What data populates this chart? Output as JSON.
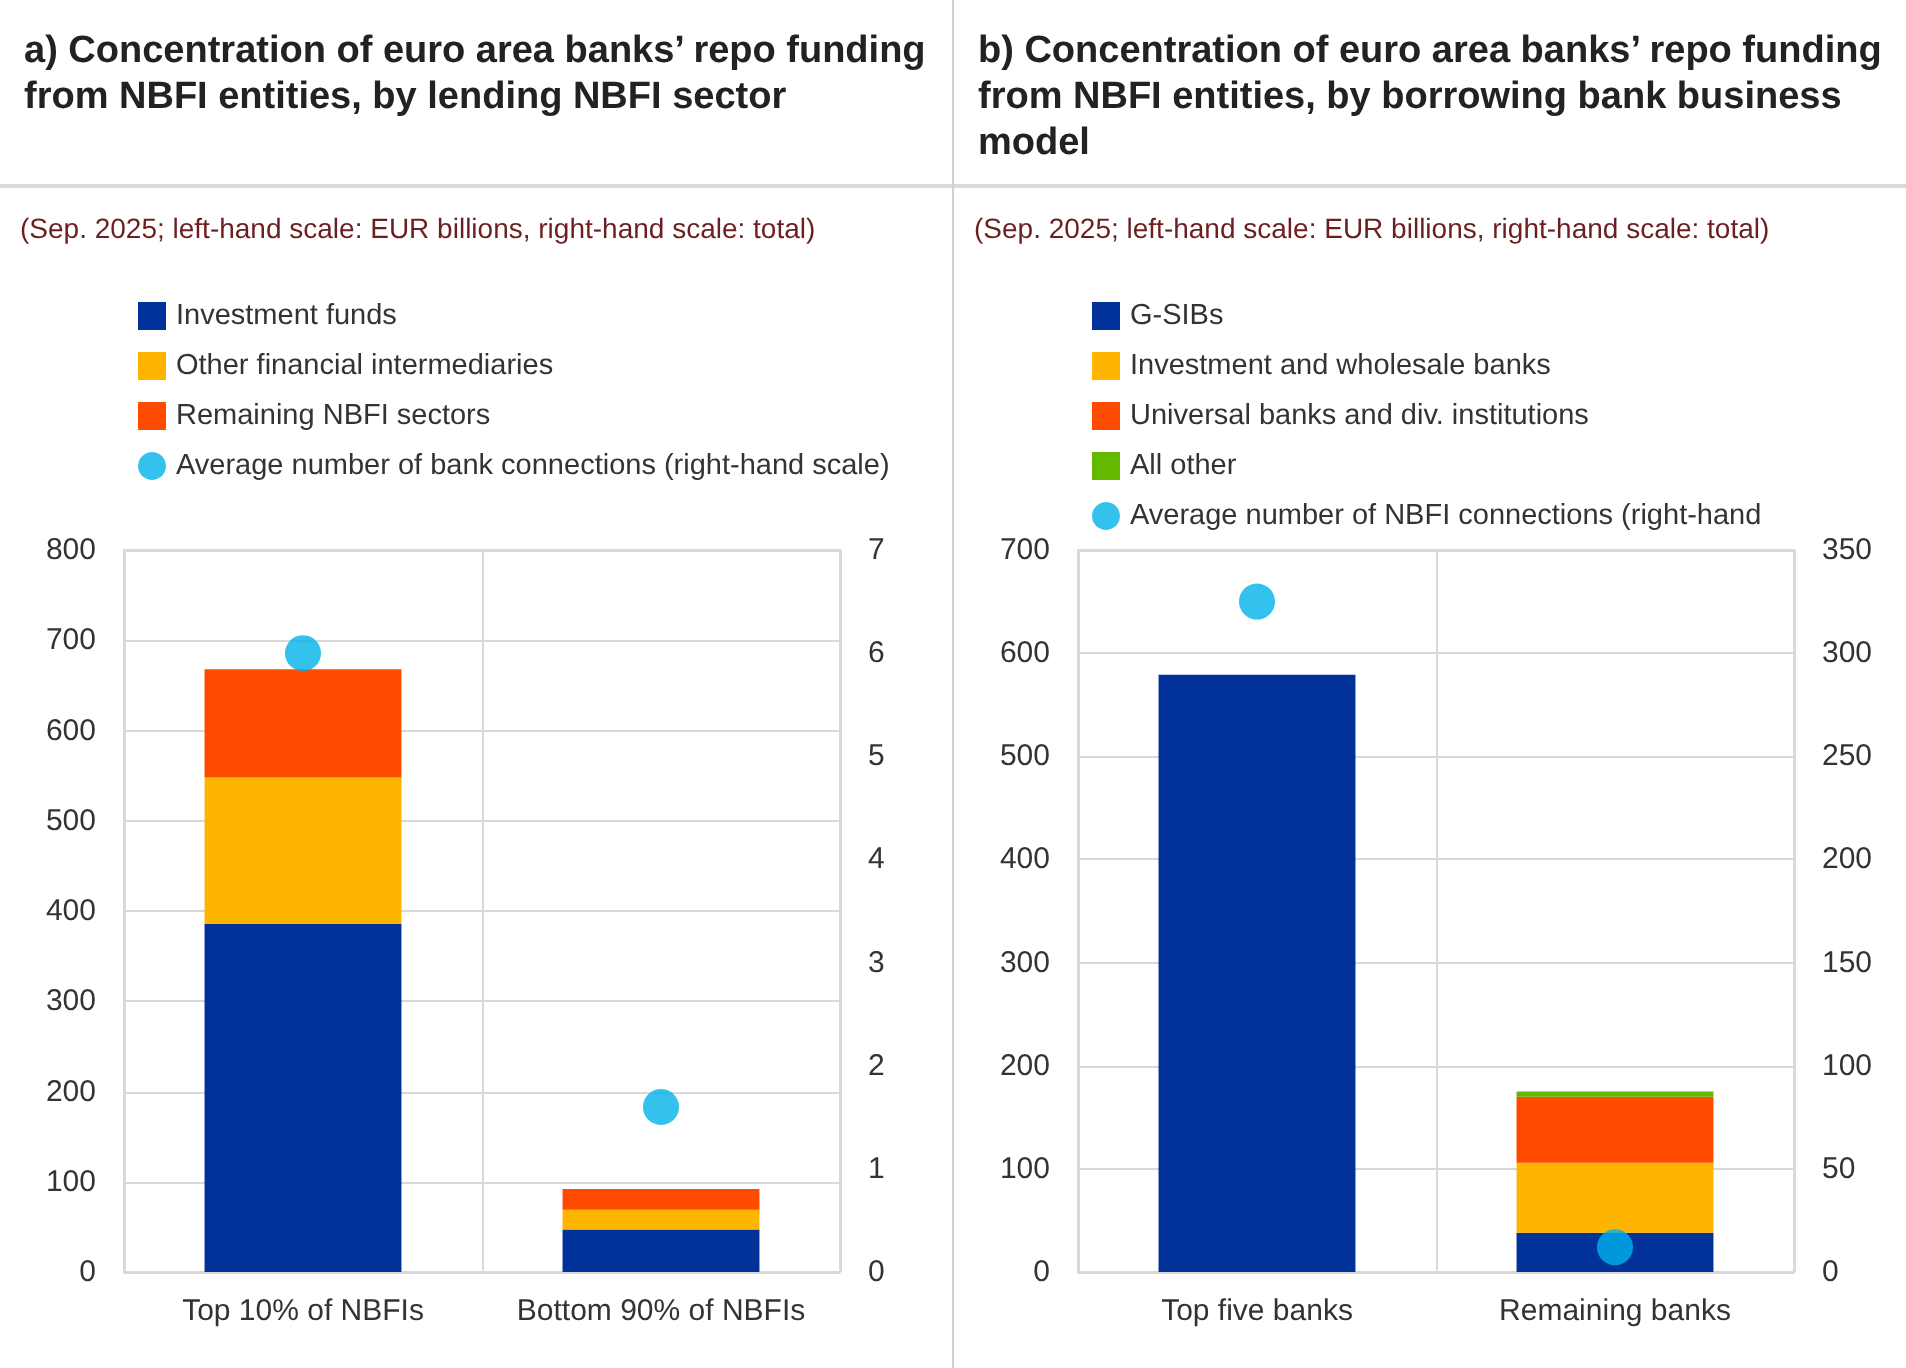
{
  "chart_data": [
    {
      "type": "bar",
      "title": "a) Concentration of euro area banks’ repo funding from NBFI entities, by lending NBFI sector",
      "subtitle": "(Sep. 2025; left-hand scale: EUR billions, right-hand scale: total)",
      "categories": [
        "Top 10% of NBFIs",
        "Bottom 90% of NBFIs"
      ],
      "stacked": true,
      "legend": "top left",
      "grid": true,
      "series": [
        {
          "name": "Investment funds",
          "color": "#003299",
          "values": [
            386,
            47
          ]
        },
        {
          "name": "Other financial intermediaries",
          "color": "#ffb400",
          "values": [
            162,
            22
          ]
        },
        {
          "name": "Remaining NBFI sectors",
          "color": "#ff4b00",
          "values": [
            120,
            23
          ]
        },
        {
          "name": "Average number of bank connections (right-hand scale)",
          "type": "scatter",
          "axis": "y2",
          "color": "#00b1ea",
          "x": [
            "Top 10% of NBFIs",
            "Bottom 90% of NBFIs"
          ],
          "values": [
            6.0,
            1.6
          ]
        }
      ],
      "ylim": [
        0,
        800
      ],
      "yticks": [
        0,
        100,
        200,
        300,
        400,
        500,
        600,
        700,
        800
      ],
      "y2lim": [
        0,
        7
      ],
      "y2ticks": [
        0,
        1,
        2,
        3,
        4,
        5,
        6,
        7
      ]
    },
    {
      "type": "bar",
      "title": "b) Concentration of euro area banks’ repo funding from NBFI entities, by borrowing bank business model",
      "subtitle": "(Sep. 2025; left-hand scale: EUR billions, right-hand scale: total)",
      "categories": [
        "Top five banks",
        "Remaining banks"
      ],
      "stacked": true,
      "legend": "top left",
      "grid": true,
      "series": [
        {
          "name": "G-SIBs",
          "color": "#003299",
          "values": [
            579,
            38
          ]
        },
        {
          "name": "Investment and wholesale banks",
          "color": "#ffb400",
          "values": [
            0,
            68
          ]
        },
        {
          "name": "Universal banks and div. institutions",
          "color": "#ff4b00",
          "values": [
            0,
            64
          ]
        },
        {
          "name": "All other",
          "color": "#65b800",
          "values": [
            0,
            5
          ]
        },
        {
          "name": "Average number of NBFI connections (right-hand",
          "type": "scatter",
          "axis": "y2",
          "color": "#00b1ea",
          "x": [
            "Top five banks",
            "Remaining banks"
          ],
          "values": [
            325,
            12
          ]
        }
      ],
      "ylim": [
        0,
        700
      ],
      "yticks": [
        0,
        100,
        200,
        300,
        400,
        500,
        600,
        700
      ],
      "y2lim": [
        0,
        350
      ],
      "y2ticks": [
        0,
        50,
        100,
        150,
        200,
        250,
        300,
        350
      ]
    }
  ]
}
